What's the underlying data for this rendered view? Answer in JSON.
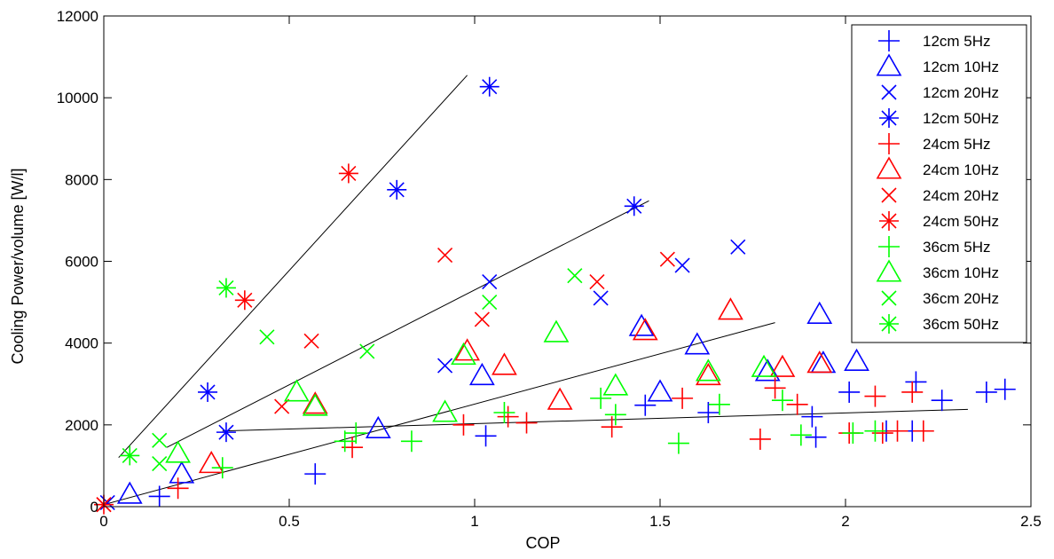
{
  "chart_data": {
    "type": "scatter",
    "title": "",
    "xlabel": "COP",
    "ylabel": "Cooling Power/volume [W/l]",
    "xlim": [
      0,
      2.5
    ],
    "ylim": [
      0,
      12000
    ],
    "x_ticks": [
      0,
      0.5,
      1,
      1.5,
      2,
      2.5
    ],
    "x_tick_labels": [
      "0",
      "0.5",
      "1",
      "1.5",
      "2",
      "2.5"
    ],
    "y_ticks": [
      0,
      2000,
      4000,
      6000,
      8000,
      10000,
      12000
    ],
    "y_tick_labels": [
      "0",
      "2000",
      "4000",
      "6000",
      "8000",
      "10000",
      "12000"
    ],
    "grid": false,
    "legend_position": "top-right",
    "series": [
      {
        "name": "12cm 5Hz",
        "color": "#0000ff",
        "marker": "plus",
        "points": [
          [
            0.15,
            250
          ],
          [
            0.57,
            800
          ],
          [
            1.03,
            1730
          ],
          [
            1.46,
            2480
          ],
          [
            1.63,
            2300
          ],
          [
            1.91,
            2200
          ],
          [
            1.92,
            1700
          ],
          [
            2.01,
            2800
          ],
          [
            2.11,
            1850
          ],
          [
            2.18,
            1850
          ],
          [
            2.19,
            3050
          ],
          [
            2.26,
            2600
          ],
          [
            2.38,
            2800
          ],
          [
            2.43,
            2870
          ]
        ]
      },
      {
        "name": "12cm 10Hz",
        "color": "#0000ff",
        "marker": "triangle",
        "points": [
          [
            0.07,
            300
          ],
          [
            0.21,
            800
          ],
          [
            0.74,
            1900
          ],
          [
            1.02,
            3200
          ],
          [
            1.5,
            2800
          ],
          [
            1.45,
            4400
          ],
          [
            1.6,
            3950
          ],
          [
            1.79,
            3300
          ],
          [
            1.93,
            4700
          ],
          [
            1.94,
            3500
          ],
          [
            2.03,
            3550
          ]
        ]
      },
      {
        "name": "12cm 20Hz",
        "color": "#0000ff",
        "marker": "x",
        "points": [
          [
            0.01,
            100
          ],
          [
            0.92,
            3450
          ],
          [
            1.04,
            5500
          ],
          [
            1.34,
            5100
          ],
          [
            1.56,
            5900
          ],
          [
            1.71,
            6350
          ]
        ]
      },
      {
        "name": "12cm 50Hz",
        "color": "#0000ff",
        "marker": "star",
        "points": [
          [
            0.28,
            2800
          ],
          [
            0.33,
            1820
          ],
          [
            0.79,
            7750
          ],
          [
            1.04,
            10270
          ],
          [
            1.43,
            7350
          ]
        ]
      },
      {
        "name": "24cm 5Hz",
        "color": "#ff0000",
        "marker": "plus",
        "points": [
          [
            0.2,
            450
          ],
          [
            0.67,
            1450
          ],
          [
            0.97,
            2000
          ],
          [
            1.09,
            2200
          ],
          [
            1.14,
            2050
          ],
          [
            1.37,
            1950
          ],
          [
            1.56,
            2650
          ],
          [
            1.77,
            1650
          ],
          [
            1.81,
            2900
          ],
          [
            1.87,
            2500
          ],
          [
            2.01,
            1800
          ],
          [
            2.08,
            2700
          ],
          [
            2.1,
            1800
          ],
          [
            2.14,
            1850
          ],
          [
            2.18,
            2800
          ],
          [
            2.21,
            1850
          ]
        ]
      },
      {
        "name": "24cm 10Hz",
        "color": "#ff0000",
        "marker": "triangle",
        "points": [
          [
            0.29,
            1050
          ],
          [
            0.57,
            2500
          ],
          [
            0.98,
            3800
          ],
          [
            1.08,
            3450
          ],
          [
            1.23,
            2600
          ],
          [
            1.46,
            4300
          ],
          [
            1.63,
            3200
          ],
          [
            1.69,
            4800
          ],
          [
            1.83,
            3400
          ],
          [
            1.93,
            3500
          ]
        ]
      },
      {
        "name": "24cm 20Hz",
        "color": "#ff0000",
        "marker": "x",
        "points": [
          [
            0.0,
            50
          ],
          [
            0.48,
            2450
          ],
          [
            0.56,
            4050
          ],
          [
            0.92,
            6150
          ],
          [
            1.02,
            4580
          ],
          [
            1.33,
            5500
          ],
          [
            1.52,
            6050
          ]
        ]
      },
      {
        "name": "24cm 50Hz",
        "color": "#ff0000",
        "marker": "star",
        "points": [
          [
            0.0,
            50
          ],
          [
            0.38,
            5050
          ],
          [
            0.66,
            8150
          ]
        ]
      },
      {
        "name": "36cm 5Hz",
        "color": "#00ff00",
        "marker": "plus",
        "points": [
          [
            0.32,
            950
          ],
          [
            0.65,
            1600
          ],
          [
            0.68,
            1800
          ],
          [
            0.83,
            1600
          ],
          [
            1.08,
            2300
          ],
          [
            1.34,
            2650
          ],
          [
            1.38,
            2250
          ],
          [
            1.55,
            1550
          ],
          [
            1.66,
            2500
          ],
          [
            1.83,
            2600
          ],
          [
            1.88,
            1750
          ],
          [
            2.02,
            1800
          ],
          [
            2.08,
            1850
          ]
        ]
      },
      {
        "name": "36cm 10Hz",
        "color": "#00ff00",
        "marker": "triangle",
        "points": [
          [
            0.2,
            1300
          ],
          [
            0.52,
            2800
          ],
          [
            0.57,
            2450
          ],
          [
            0.92,
            2300
          ],
          [
            0.97,
            3700
          ],
          [
            1.22,
            4250
          ],
          [
            1.38,
            2950
          ],
          [
            1.63,
            3300
          ],
          [
            1.78,
            3400
          ]
        ]
      },
      {
        "name": "36cm 20Hz",
        "color": "#00ff00",
        "marker": "x",
        "points": [
          [
            0.15,
            1620
          ],
          [
            0.15,
            1050
          ],
          [
            0.44,
            4150
          ],
          [
            0.71,
            3800
          ],
          [
            1.04,
            5000
          ],
          [
            1.27,
            5650
          ]
        ]
      },
      {
        "name": "36cm 50Hz",
        "color": "#00ff00",
        "marker": "star",
        "points": [
          [
            0.07,
            1250
          ],
          [
            0.33,
            5350
          ]
        ]
      }
    ],
    "fit_lines": [
      {
        "color": "#000000",
        "from": [
          0.04,
          1200
        ],
        "to": [
          0.98,
          10550
        ]
      },
      {
        "color": "#000000",
        "from": [
          0.17,
          1450
        ],
        "to": [
          1.47,
          7480
        ]
      },
      {
        "color": "#000000",
        "from": [
          0.0,
          50
        ],
        "to": [
          1.81,
          4500
        ]
      },
      {
        "color": "#000000",
        "from": [
          0.32,
          1850
        ],
        "to": [
          2.33,
          2380
        ]
      }
    ]
  }
}
